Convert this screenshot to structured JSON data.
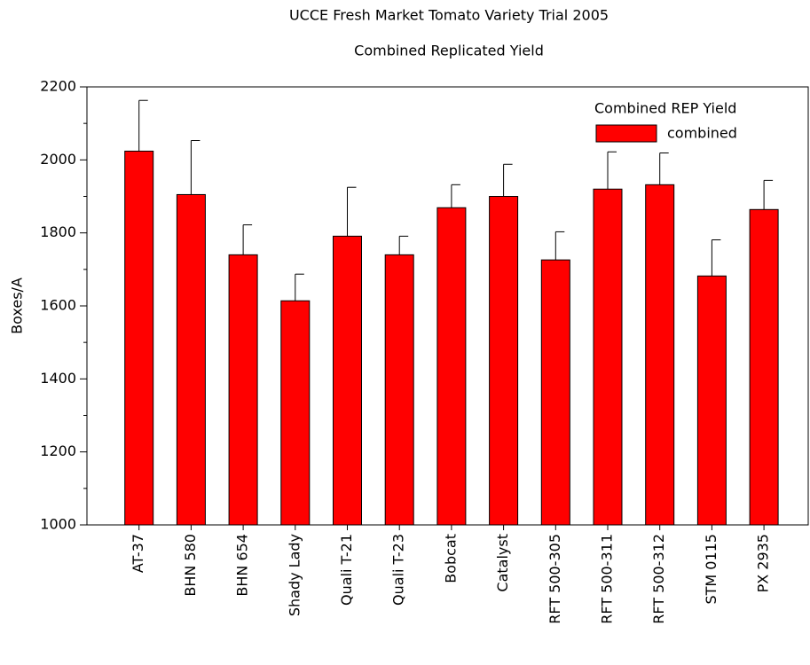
{
  "chart_data": {
    "type": "bar",
    "title": "UCCE Fresh Market Tomato Variety Trial 2005",
    "subtitle": "Combined Replicated Yield",
    "y_label": "Boxes/A",
    "legend_title": "Combined REP Yield",
    "legend": "upper right",
    "categories": [
      "AT-37",
      "BHN 580",
      "BHN 654",
      "Shady Lady",
      "Quali T-21",
      "Quali T-23",
      "Bobcat",
      "Catalyst",
      "RFT 500-305",
      "RFT 500-311",
      "RFT 500-312",
      "STM 0115",
      "PX 2935"
    ],
    "series": [
      {
        "name": "combined",
        "color": "#ff0000",
        "values": [
          2024,
          1905,
          1740,
          1614,
          1791,
          1740,
          1869,
          1900,
          1726,
          1920,
          1932,
          1682,
          1864
        ],
        "errors": [
          139,
          148,
          82,
          73,
          134,
          51,
          63,
          88,
          77,
          102,
          87,
          99,
          80
        ]
      }
    ],
    "ylim": [
      1000,
      2200
    ],
    "yticks": [
      1000,
      1200,
      1400,
      1600,
      1800,
      2000,
      2200
    ],
    "yminorticks": [
      1100,
      1300,
      1500,
      1700,
      1900,
      2100
    ]
  }
}
